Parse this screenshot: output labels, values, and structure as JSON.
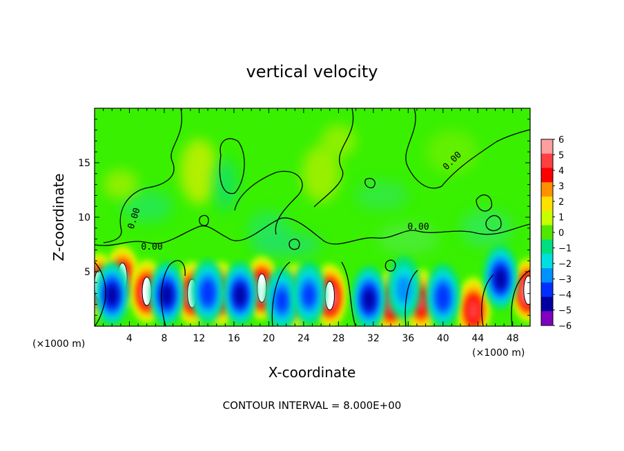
{
  "chart_data": {
    "type": "heatmap",
    "title": "vertical velocity",
    "xlabel": "X-coordinate",
    "ylabel": "Z-coordinate",
    "x_unit": "(×1000 m)",
    "x_unit_right": "(×1000 m)",
    "footer": "CONTOUR INTERVAL = 8.000E+00",
    "xlim": [
      0,
      50
    ],
    "ylim": [
      0,
      20
    ],
    "x_ticks": [
      4,
      8,
      12,
      16,
      20,
      24,
      28,
      32,
      36,
      40,
      44,
      48
    ],
    "y_ticks": [
      5,
      10,
      15
    ],
    "colorbar": {
      "levels": [
        6,
        5,
        4,
        3,
        2,
        1,
        0,
        -1,
        -2,
        -3,
        -4,
        -5,
        -6
      ],
      "colors": [
        "#ffa0a0",
        "#ff4040",
        "#ff0000",
        "#ff9000",
        "#ffe000",
        "#c8ff00",
        "#50e800",
        "#00e080",
        "#00e0e0",
        "#0090ff",
        "#0030ff",
        "#0000a0",
        "#8000c0"
      ]
    },
    "contour_labels": [
      "0.00",
      "0.00",
      "0.00",
      "0.00"
    ],
    "cells": [
      {
        "x": 0.5,
        "z": 3.8,
        "value": 6.5
      },
      {
        "x": 3.2,
        "z": 4.5,
        "value": 6.0
      },
      {
        "x": 6.0,
        "z": 3.2,
        "value": 6.0
      },
      {
        "x": 11.2,
        "z": 3.0,
        "value": 6.0
      },
      {
        "x": 14.5,
        "z": 3.0,
        "value": 5.5
      },
      {
        "x": 19.2,
        "z": 3.5,
        "value": 7.0
      },
      {
        "x": 23.0,
        "z": 2.8,
        "value": 5.0
      },
      {
        "x": 27.0,
        "z": 2.8,
        "value": 6.5
      },
      {
        "x": 34.0,
        "z": 2.2,
        "value": 5.5
      },
      {
        "x": 37.5,
        "z": 2.3,
        "value": 5.0
      },
      {
        "x": 43.5,
        "z": 1.6,
        "value": 5.5
      },
      {
        "x": 49.8,
        "z": 3.3,
        "value": 7.0
      },
      {
        "x": 2.0,
        "z": 3.0,
        "value": -5.5
      },
      {
        "x": 8.3,
        "z": 3.0,
        "value": -5.5
      },
      {
        "x": 13.0,
        "z": 3.2,
        "value": -4.5
      },
      {
        "x": 16.7,
        "z": 3.0,
        "value": -5.5
      },
      {
        "x": 21.5,
        "z": 2.5,
        "value": -4.0
      },
      {
        "x": 24.6,
        "z": 3.0,
        "value": -4.0
      },
      {
        "x": 31.5,
        "z": 2.6,
        "value": -5.5
      },
      {
        "x": 35.5,
        "z": 3.5,
        "value": -3.0
      },
      {
        "x": 40.0,
        "z": 2.8,
        "value": -4.5
      },
      {
        "x": 46.6,
        "z": 4.5,
        "value": -5.5
      }
    ]
  }
}
